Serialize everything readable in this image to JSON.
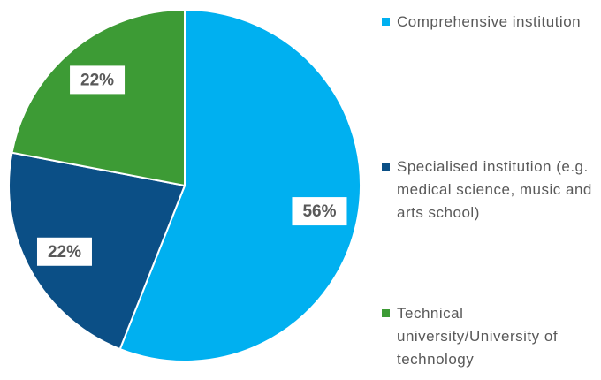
{
  "chart_data": {
    "type": "pie",
    "categories": [
      "Comprehensive institution",
      "Specialised institution (e.g. medical science, music and arts school)",
      "Technical university/University of technology"
    ],
    "values": [
      56,
      22,
      22
    ],
    "value_labels": [
      "56%",
      "22%",
      "22%"
    ],
    "colors": [
      "#00b0f0",
      "#0b4f86",
      "#3d9b35"
    ]
  }
}
